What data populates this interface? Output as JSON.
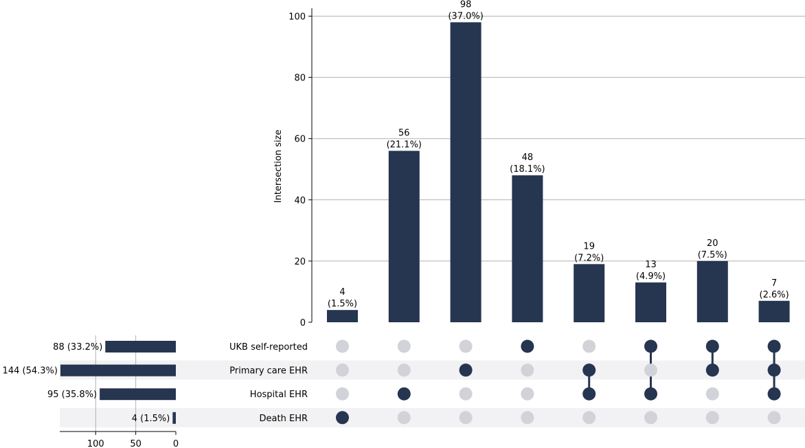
{
  "colors": {
    "bar": "#263550",
    "dot_active": "#263550",
    "dot_inactive": "#d1d3d8",
    "row_stripe": "#f2f2f4",
    "grid": "#b0b0b0"
  },
  "chart_data": {
    "type": "upset",
    "ylabel": "Intersection size",
    "ylim": [
      0,
      102
    ],
    "yticks": [
      0,
      20,
      40,
      60,
      80,
      100
    ],
    "set_size_ticks": [
      100,
      50,
      0
    ],
    "grid": true,
    "sets": [
      {
        "name": "UKB self-reported",
        "size": 88,
        "label": "88 (33.2%)"
      },
      {
        "name": "Primary care EHR",
        "size": 144,
        "label": "144 (54.3%)"
      },
      {
        "name": "Hospital EHR",
        "size": 95,
        "label": "95 (35.8%)"
      },
      {
        "name": "Death EHR",
        "size": 4,
        "label": "4 (1.5%)"
      }
    ],
    "intersections": [
      {
        "value": 4,
        "pct": "(1.5%)",
        "members": [
          3
        ]
      },
      {
        "value": 56,
        "pct": "(21.1%)",
        "members": [
          2
        ]
      },
      {
        "value": 98,
        "pct": "(37.0%)",
        "members": [
          1
        ]
      },
      {
        "value": 48,
        "pct": "(18.1%)",
        "members": [
          0
        ]
      },
      {
        "value": 19,
        "pct": "(7.2%)",
        "members": [
          1,
          2
        ]
      },
      {
        "value": 13,
        "pct": "(4.9%)",
        "members": [
          0,
          2
        ]
      },
      {
        "value": 20,
        "pct": "(7.5%)",
        "members": [
          0,
          1
        ]
      },
      {
        "value": 7,
        "pct": "(2.6%)",
        "members": [
          0,
          1,
          2
        ]
      }
    ]
  }
}
